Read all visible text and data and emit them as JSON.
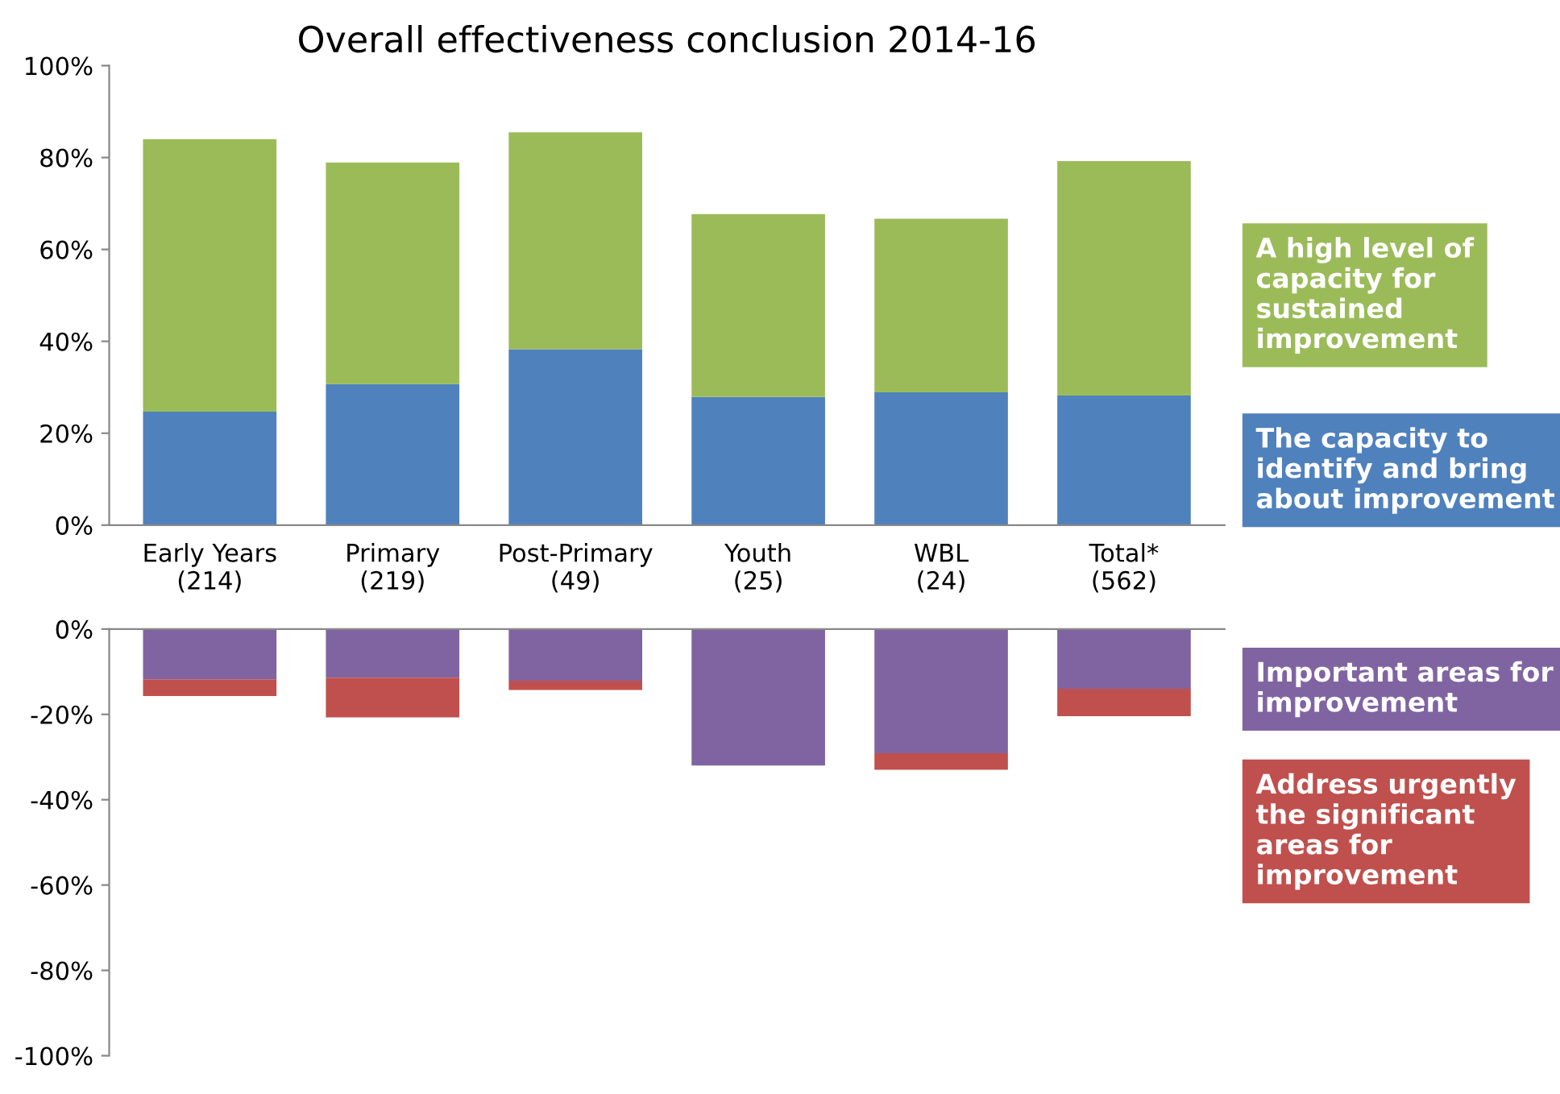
{
  "chart_data": [
    {
      "type": "bar",
      "title": "Overall effectiveness conclusion 2014-16",
      "stacked": true,
      "legend": "right",
      "grid": false,
      "categories": [
        "Early Years\n(214)",
        "Primary\n(219)",
        "Post-Primary\n(49)",
        "Youth\n(25)",
        "WBL\n(24)",
        "Total*\n(562)"
      ],
      "series": [
        {
          "name": "The capacity to identify and bring about improvement",
          "color": "#4f81bd",
          "values": [
            24.7,
            30.7,
            38.3,
            27.9,
            28.9,
            28.2
          ]
        },
        {
          "name": "A high level of capacity for sustained improvement",
          "color": "#9bbb59",
          "values": [
            59.3,
            48.2,
            47.2,
            39.8,
            37.8,
            51.0
          ]
        }
      ],
      "ylim": [
        0,
        100
      ],
      "yticks": [
        {
          "value": 0,
          "label": "0%"
        },
        {
          "value": 20,
          "label": "20%"
        },
        {
          "value": 40,
          "label": "40%"
        },
        {
          "value": 60,
          "label": "60%"
        },
        {
          "value": 80,
          "label": "80%"
        },
        {
          "value": 100,
          "label": "100%"
        }
      ]
    },
    {
      "type": "bar",
      "stacked": true,
      "legend": "right",
      "grid": false,
      "tick_labels": "y",
      "categories": [
        null,
        null,
        null,
        null,
        null,
        null
      ],
      "series": [
        {
          "name": "Important areas for improvement",
          "color": "#8064a2",
          "values": [
            -11.8,
            -11.4,
            -12.1,
            -32.0,
            -29.1,
            -14.0
          ]
        },
        {
          "name": "Address urgently the significant areas for improvement",
          "color": "#c0504d",
          "values": [
            -3.9,
            -9.3,
            -2.2,
            0,
            -3.9,
            -6.4
          ]
        }
      ],
      "ylim": [
        -100,
        0
      ],
      "yticks": [
        {
          "value": 0,
          "label": "0%"
        },
        {
          "value": -20,
          "label": "-20%"
        },
        {
          "value": -40,
          "label": "-40%"
        },
        {
          "value": -60,
          "label": "-60%"
        },
        {
          "value": -80,
          "label": "-80%"
        },
        {
          "value": -100,
          "label": "-100%"
        }
      ]
    }
  ]
}
